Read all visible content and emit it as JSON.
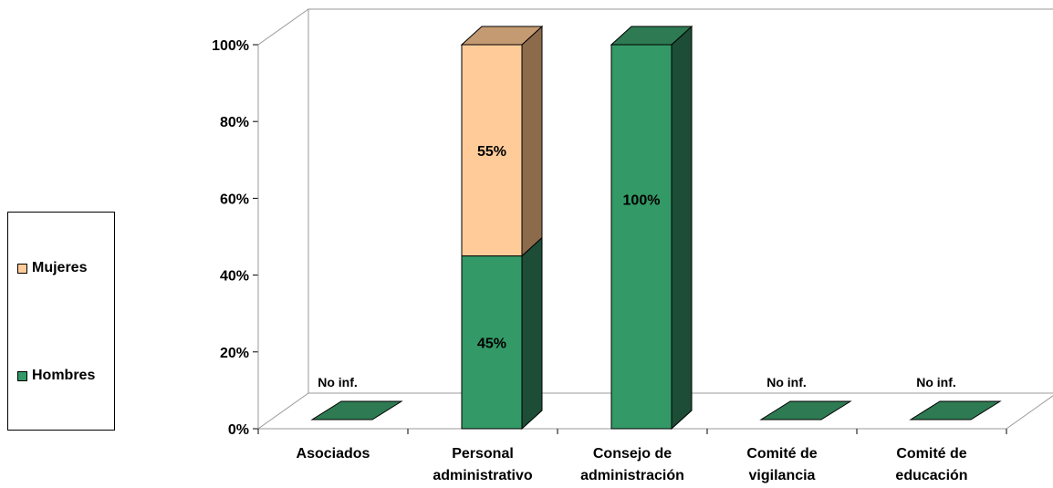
{
  "chart_data": {
    "type": "bar",
    "stacked": true,
    "three_d": true,
    "categories": [
      [
        "Asociados"
      ],
      [
        "Personal",
        "administrativo"
      ],
      [
        "Consejo de",
        "administración"
      ],
      [
        "Comité de",
        "vigilancia"
      ],
      [
        "Comité de",
        "educación"
      ]
    ],
    "series": [
      {
        "name": "Hombres",
        "values": [
          0,
          45,
          100,
          0,
          0
        ],
        "color": "#339966",
        "side_color": "#1d4d36",
        "top_color": "#2e7a52"
      },
      {
        "name": "Mujeres",
        "values": [
          0,
          55,
          0,
          0,
          0
        ],
        "color": "#ffcc99",
        "side_color": "#8c6b4c",
        "top_color": "#c49a72"
      }
    ],
    "data_labels": [
      "No inf.",
      [
        "45%",
        "55%"
      ],
      "100%",
      "No inf.",
      "No inf."
    ],
    "ylim": [
      0,
      100
    ],
    "yticks": [
      "0%",
      "20%",
      "40%",
      "60%",
      "80%",
      "100%"
    ],
    "grid": false,
    "legend_position": "left"
  }
}
